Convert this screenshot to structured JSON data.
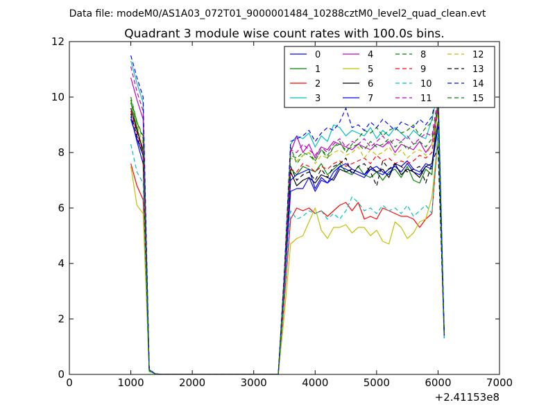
{
  "figure": {
    "suptitle": "Data file: modeM0/AS1A03_072T01_9000001484_10288cztM0_level2_quad_clean.evt",
    "title": "Quadrant 3 module wise count rates with 100.0s bins.",
    "x_offset_label": "+2.41153e8"
  },
  "chart_data": {
    "type": "line",
    "title": "Quadrant 3 module wise count rates with 100.0s bins.",
    "xlabel": "",
    "ylabel": "",
    "xlim": [
      0,
      7000
    ],
    "ylim": [
      0,
      12
    ],
    "x_ticks": [
      0,
      1000,
      2000,
      3000,
      4000,
      5000,
      6000,
      7000
    ],
    "y_ticks": [
      0,
      2,
      4,
      6,
      8,
      10,
      12
    ],
    "x_tick_labels": [
      "0",
      "1000",
      "2000",
      "3000",
      "4000",
      "5000",
      "6000",
      "7000"
    ],
    "y_tick_labels": [
      "0",
      "2",
      "4",
      "6",
      "8",
      "10",
      "12"
    ],
    "grid": false,
    "legend_placement": "upper-right",
    "legend_columns": 4,
    "x": [
      1000,
      1100,
      1200,
      1300,
      1400,
      1500,
      3300,
      3400,
      3500,
      3600,
      3700,
      3800,
      3900,
      4000,
      4100,
      4200,
      4300,
      4400,
      4500,
      4600,
      4700,
      4800,
      4900,
      5000,
      5100,
      5200,
      5300,
      5400,
      5500,
      5600,
      5700,
      5800,
      5900,
      6000,
      6100
    ],
    "series": [
      {
        "name": "0",
        "color": "#0000ff",
        "dash": "solid",
        "values": [
          9.3,
          8.4,
          7.6,
          0.15,
          0.02,
          0,
          0,
          0,
          3.2,
          6.6,
          6.7,
          6.7,
          7.1,
          6.6,
          7.0,
          6.9,
          7.1,
          7.5,
          7.4,
          7.3,
          7.2,
          7.1,
          7.4,
          7.3,
          7.2,
          7.4,
          7.5,
          7.3,
          7.6,
          7.3,
          7.2,
          7.5,
          7.4,
          9.8,
          1.4
        ]
      },
      {
        "name": "1",
        "color": "#008000",
        "dash": "solid",
        "values": [
          9.8,
          8.9,
          8.0,
          0.15,
          0.02,
          0,
          0,
          0,
          3.3,
          7.4,
          7.2,
          7.5,
          7.4,
          7.3,
          7.6,
          7.2,
          7.4,
          7.6,
          7.3,
          7.2,
          7.5,
          7.2,
          7.1,
          7.3,
          7.0,
          7.3,
          7.4,
          7.1,
          7.5,
          7.0,
          6.9,
          7.4,
          7.2,
          10.0,
          1.5
        ]
      },
      {
        "name": "2",
        "color": "#ff0000",
        "dash": "solid",
        "values": [
          7.6,
          6.8,
          6.3,
          0.12,
          0.02,
          0,
          0,
          0,
          2.7,
          5.6,
          6.0,
          5.9,
          6.0,
          5.8,
          5.9,
          5.7,
          5.9,
          6.1,
          6.2,
          5.9,
          6.2,
          5.6,
          5.7,
          5.6,
          6.0,
          5.9,
          5.8,
          5.7,
          5.7,
          5.6,
          5.3,
          5.6,
          5.8,
          8.6,
          1.3
        ]
      },
      {
        "name": "3",
        "color": "#00bfbf",
        "dash": "solid",
        "values": [
          11.3,
          10.5,
          9.8,
          0.18,
          0.02,
          0,
          0,
          0,
          3.7,
          8.3,
          8.6,
          8.5,
          8.7,
          8.2,
          8.6,
          8.4,
          9.0,
          8.9,
          8.6,
          8.8,
          8.7,
          8.6,
          8.9,
          8.5,
          8.8,
          8.6,
          8.9,
          8.7,
          8.5,
          8.8,
          8.6,
          8.5,
          9.2,
          10.2,
          1.3
        ]
      },
      {
        "name": "4",
        "color": "#bf00bf",
        "dash": "solid",
        "values": [
          10.7,
          9.9,
          9.2,
          0.16,
          0.02,
          0,
          0,
          0,
          3.6,
          8.0,
          8.6,
          8.0,
          8.3,
          7.8,
          8.2,
          8.1,
          8.4,
          8.3,
          8.2,
          8.1,
          8.3,
          8.2,
          8.1,
          8.3,
          8.2,
          8.4,
          8.0,
          8.3,
          8.2,
          8.1,
          8.4,
          8.0,
          8.3,
          9.8,
          1.4
        ]
      },
      {
        "name": "5",
        "color": "#bfbf00",
        "dash": "solid",
        "values": [
          7.5,
          6.1,
          5.8,
          0.1,
          0.02,
          0,
          0,
          0,
          2.2,
          4.7,
          4.9,
          5.0,
          5.5,
          6.0,
          5.2,
          4.9,
          5.3,
          5.3,
          5.4,
          5.1,
          5.3,
          5.3,
          5.0,
          5.2,
          4.8,
          4.7,
          5.5,
          5.3,
          4.9,
          5.1,
          5.5,
          5.6,
          6.4,
          8.5,
          1.5
        ]
      },
      {
        "name": "6",
        "color": "#000000",
        "dash": "solid",
        "values": [
          9.6,
          8.8,
          8.1,
          0.14,
          0.02,
          0,
          0,
          0,
          3.4,
          7.3,
          6.8,
          7.0,
          7.1,
          6.9,
          7.2,
          7.1,
          7.0,
          7.4,
          7.3,
          7.4,
          7.3,
          7.2,
          7.5,
          7.3,
          7.4,
          7.1,
          7.6,
          7.2,
          7.4,
          7.3,
          7.1,
          7.5,
          7.6,
          9.1,
          1.5
        ]
      },
      {
        "name": "7",
        "color": "#0000ff",
        "dash": "solid",
        "values": [
          9.2,
          8.5,
          7.9,
          0.14,
          0.02,
          0,
          0,
          0,
          3.3,
          7.0,
          7.2,
          7.3,
          7.4,
          6.7,
          7.1,
          6.9,
          7.3,
          7.5,
          7.6,
          7.4,
          7.3,
          7.2,
          7.4,
          7.5,
          7.3,
          7.2,
          7.6,
          7.5,
          7.7,
          7.4,
          7.3,
          7.6,
          7.5,
          8.9,
          1.5
        ]
      },
      {
        "name": "8",
        "color": "#008000",
        "dash": "dashed",
        "values": [
          10.0,
          9.1,
          8.5,
          0.16,
          0.02,
          0,
          0,
          0,
          3.5,
          8.2,
          7.6,
          7.9,
          8.0,
          7.7,
          8.1,
          7.8,
          8.2,
          8.4,
          8.0,
          8.3,
          8.5,
          8.8,
          8.7,
          8.9,
          8.6,
          8.8,
          8.9,
          8.7,
          8.8,
          9.0,
          8.6,
          8.9,
          9.1,
          10.5,
          1.4
        ]
      },
      {
        "name": "9",
        "color": "#ff0000",
        "dash": "dashed",
        "values": [
          9.5,
          8.7,
          8.0,
          0.14,
          0.02,
          0,
          0,
          0,
          3.4,
          7.4,
          7.3,
          7.6,
          7.5,
          7.3,
          7.5,
          7.4,
          7.6,
          7.7,
          7.5,
          7.6,
          7.7,
          7.8,
          7.6,
          7.9,
          7.7,
          7.8,
          7.6,
          7.7,
          7.6,
          7.7,
          7.9,
          7.8,
          8.0,
          9.6,
          1.5
        ]
      },
      {
        "name": "10",
        "color": "#00bfbf",
        "dash": "dashed",
        "values": [
          8.3,
          7.3,
          6.9,
          0.12,
          0.02,
          0,
          0,
          0,
          2.8,
          5.9,
          5.6,
          5.7,
          5.9,
          5.8,
          5.9,
          5.6,
          5.8,
          5.6,
          5.9,
          6.4,
          6.2,
          5.9,
          6.0,
          5.8,
          6.1,
          5.9,
          6.0,
          5.8,
          6.1,
          5.7,
          5.9,
          6.1,
          5.8,
          8.8,
          1.3
        ]
      },
      {
        "name": "11",
        "color": "#bf00bf",
        "dash": "dashed",
        "values": [
          11.1,
          10.2,
          9.5,
          0.17,
          0.02,
          0,
          0,
          0,
          3.7,
          8.1,
          8.0,
          8.3,
          8.1,
          7.9,
          8.2,
          8.0,
          8.3,
          8.5,
          8.2,
          8.4,
          8.3,
          8.5,
          8.2,
          8.4,
          8.6,
          8.3,
          8.5,
          8.4,
          8.6,
          8.3,
          8.5,
          8.7,
          8.6,
          10.0,
          1.4
        ]
      },
      {
        "name": "12",
        "color": "#bfbf00",
        "dash": "dashed",
        "values": [
          9.9,
          9.0,
          8.3,
          0.15,
          0.02,
          0,
          0,
          0,
          3.5,
          7.8,
          7.7,
          7.9,
          8.0,
          7.6,
          7.9,
          7.8,
          8.0,
          8.1,
          7.9,
          8.0,
          8.2,
          7.8,
          8.1,
          7.9,
          8.0,
          8.2,
          7.9,
          8.1,
          7.8,
          8.0,
          8.1,
          7.9,
          8.3,
          9.4,
          1.5
        ]
      },
      {
        "name": "13",
        "color": "#000000",
        "dash": "dashed",
        "values": [
          9.4,
          8.6,
          7.9,
          0.14,
          0.02,
          0,
          0,
          0,
          3.4,
          7.5,
          7.0,
          7.2,
          7.3,
          7.0,
          7.4,
          7.1,
          7.5,
          7.6,
          7.8,
          7.2,
          7.5,
          7.6,
          7.3,
          6.8,
          7.7,
          7.4,
          7.6,
          7.5,
          7.3,
          7.4,
          7.5,
          6.9,
          7.6,
          8.2,
          1.5
        ]
      },
      {
        "name": "14",
        "color": "#0000ff",
        "dash": "dashed",
        "values": [
          11.5,
          10.7,
          10.0,
          0.18,
          0.02,
          0,
          0,
          0,
          3.8,
          8.4,
          8.5,
          8.6,
          8.8,
          8.4,
          8.7,
          8.9,
          8.8,
          9.1,
          9.6,
          8.9,
          9.0,
          8.8,
          9.1,
          8.9,
          9.2,
          9.0,
          8.8,
          9.1,
          9.0,
          8.9,
          9.2,
          9.0,
          9.3,
          10.3,
          1.4
        ]
      },
      {
        "name": "15",
        "color": "#008000",
        "dash": "dashed",
        "values": [
          9.9,
          9.1,
          8.6,
          0.15,
          0.02,
          0,
          0,
          0,
          3.5,
          7.9,
          7.8,
          8.0,
          7.9,
          7.7,
          8.1,
          7.9,
          8.2,
          8.3,
          8.1,
          8.2,
          8.3,
          8.1,
          8.4,
          8.2,
          8.3,
          8.5,
          8.2,
          8.4,
          8.1,
          8.3,
          8.4,
          8.2,
          8.5,
          9.7,
          1.5
        ]
      }
    ]
  }
}
